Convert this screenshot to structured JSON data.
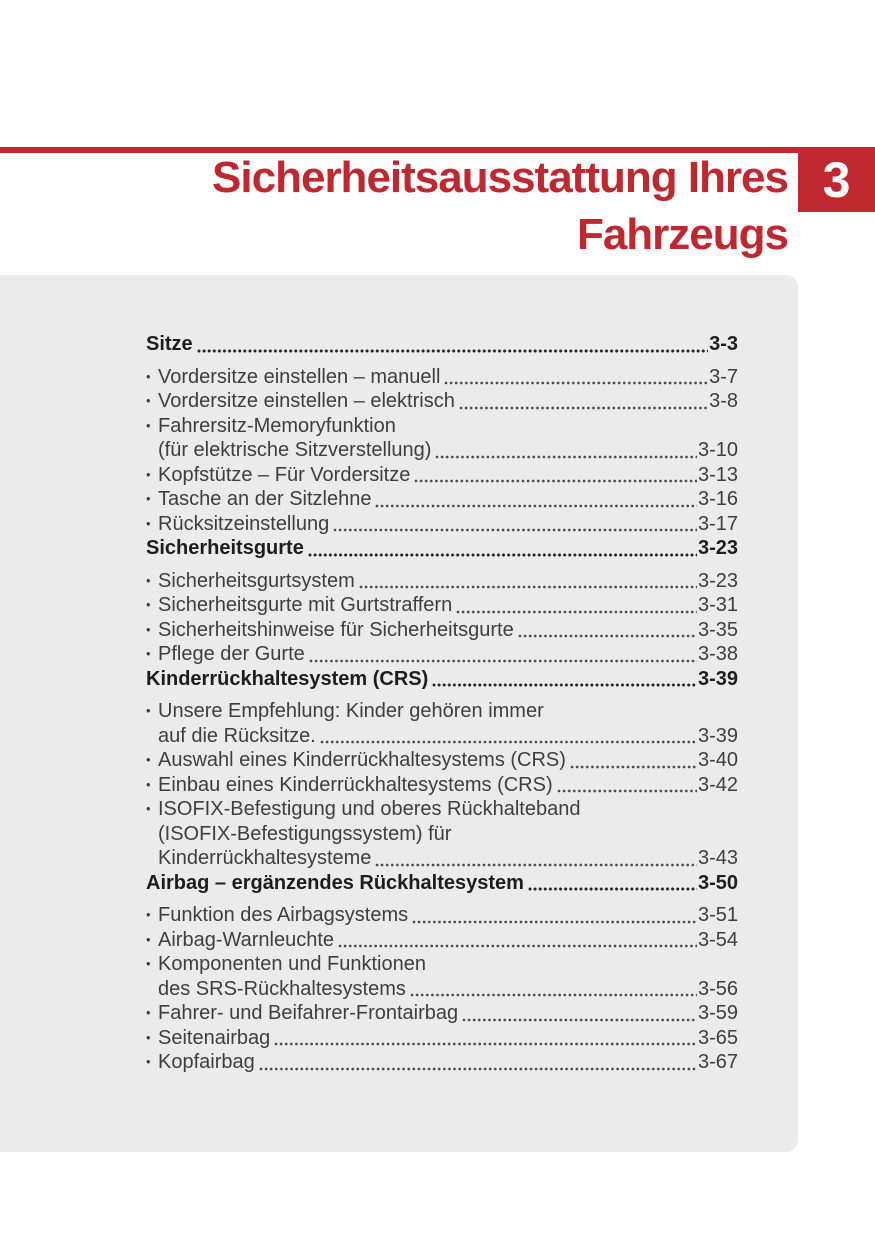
{
  "colors": {
    "accent_red": "#c0282f",
    "card_background": "#ebebeb",
    "section_text": "#1d1d1d",
    "item_text": "#3e3e3e"
  },
  "chapter": {
    "number": "3",
    "title_lines": [
      "Sicherheitsausstattung Ihres",
      "Fahrzeugs"
    ]
  },
  "toc": {
    "bullet": "•",
    "entries": [
      {
        "type": "section",
        "lines": [
          "Sitze"
        ],
        "page": "3-3"
      },
      {
        "type": "item",
        "lines": [
          "Vordersitze einstellen – manuell"
        ],
        "page": "3-7"
      },
      {
        "type": "item",
        "lines": [
          "Vordersitze einstellen – elektrisch"
        ],
        "page": "3-8"
      },
      {
        "type": "item",
        "lines": [
          "Fahrersitz-Memoryfunktion",
          "(für elektrische Sitzverstellung)"
        ],
        "page": "3-10"
      },
      {
        "type": "item",
        "lines": [
          "Kopfstütze – Für Vordersitze"
        ],
        "page": "3-13"
      },
      {
        "type": "item",
        "lines": [
          "Tasche an der Sitzlehne"
        ],
        "page": "3-16"
      },
      {
        "type": "item",
        "lines": [
          "Rücksitzeinstellung"
        ],
        "page": "3-17"
      },
      {
        "type": "section",
        "lines": [
          "Sicherheitsgurte"
        ],
        "page": "3-23"
      },
      {
        "type": "item",
        "lines": [
          "Sicherheitsgurtsystem"
        ],
        "page": "3-23"
      },
      {
        "type": "item",
        "lines": [
          "Sicherheitsgurte mit Gurtstraffern"
        ],
        "page": "3-31"
      },
      {
        "type": "item",
        "lines": [
          "Sicherheitshinweise für Sicherheitsgurte"
        ],
        "page": "3-35"
      },
      {
        "type": "item",
        "lines": [
          "Pflege der Gurte"
        ],
        "page": "3-38"
      },
      {
        "type": "section",
        "lines": [
          "Kinderrückhaltesystem (CRS)"
        ],
        "page": "3-39"
      },
      {
        "type": "item",
        "lines": [
          "Unsere Empfehlung: Kinder gehören immer",
          "auf die Rücksitze."
        ],
        "page": "3-39"
      },
      {
        "type": "item",
        "lines": [
          "Auswahl eines Kinderrückhaltesystems (CRS)"
        ],
        "page": "3-40"
      },
      {
        "type": "item",
        "lines": [
          "Einbau eines Kinderrückhaltesystems (CRS)"
        ],
        "page": "3-42"
      },
      {
        "type": "item",
        "lines": [
          "ISOFIX-Befestigung und oberes Rückhalteband",
          "(ISOFIX-Befestigungssystem) für",
          "Kinderrückhaltesysteme"
        ],
        "page": "3-43"
      },
      {
        "type": "section",
        "lines": [
          "Airbag – ergänzendes Rückhaltesystem"
        ],
        "page": "3-50"
      },
      {
        "type": "item",
        "lines": [
          "Funktion des Airbagsystems"
        ],
        "page": "3-51"
      },
      {
        "type": "item",
        "lines": [
          "Airbag-Warnleuchte"
        ],
        "page": "3-54"
      },
      {
        "type": "item",
        "lines": [
          "Komponenten und Funktionen",
          "des SRS-Rückhaltesystems"
        ],
        "page": "3-56"
      },
      {
        "type": "item",
        "lines": [
          "Fahrer- und Beifahrer-Frontairbag"
        ],
        "page": "3-59"
      },
      {
        "type": "item",
        "lines": [
          "Seitenairbag"
        ],
        "page": "3-65"
      },
      {
        "type": "item",
        "lines": [
          "Kopfairbag"
        ],
        "page": "3-67"
      }
    ]
  }
}
